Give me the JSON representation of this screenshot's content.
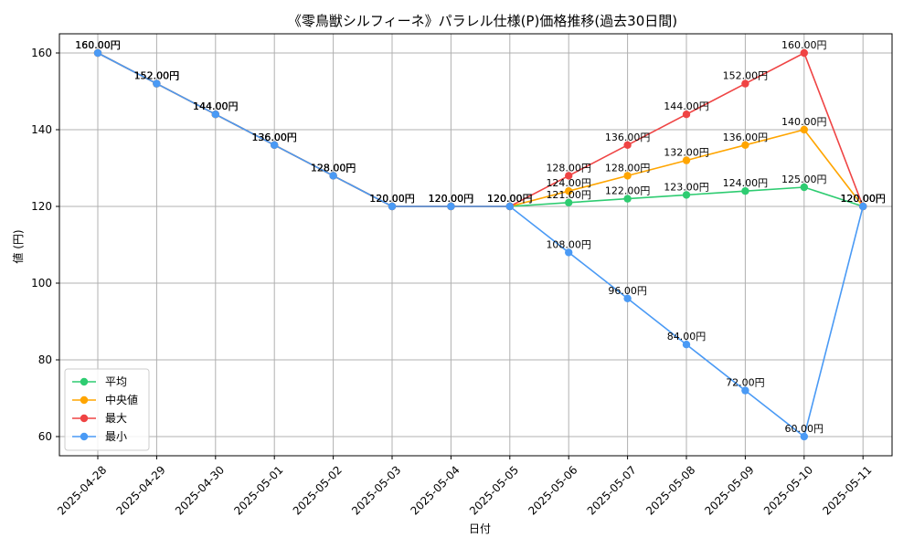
{
  "chart_data": {
    "type": "line",
    "title": "《零鳥獣シルフィーネ》パラレル仕様(P)価格推移(過去30日間)",
    "xlabel": "日付",
    "ylabel": "値 (円)",
    "ylim": [
      55,
      165
    ],
    "yticks": [
      60,
      80,
      100,
      120,
      140,
      160
    ],
    "grid": true,
    "legend_position": "bottom-left",
    "label_suffix": "円",
    "categories": [
      "2025-04-28",
      "2025-04-29",
      "2025-04-30",
      "2025-05-01",
      "2025-05-02",
      "2025-05-03",
      "2025-05-04",
      "2025-05-05",
      "2025-05-06",
      "2025-05-07",
      "2025-05-08",
      "2025-05-09",
      "2025-05-10",
      "2025-05-11"
    ],
    "series": [
      {
        "name": "平均",
        "color": "#2ecc71",
        "values": [
          160,
          152,
          144,
          136,
          128,
          120,
          120,
          120,
          121,
          122,
          123,
          124,
          125,
          120
        ]
      },
      {
        "name": "中央値",
        "color": "#ffa500",
        "values": [
          160,
          152,
          144,
          136,
          128,
          120,
          120,
          120,
          124,
          128,
          132,
          136,
          140,
          120
        ]
      },
      {
        "name": "最大",
        "color": "#ef4444",
        "values": [
          160,
          152,
          144,
          136,
          128,
          120,
          120,
          120,
          128,
          136,
          144,
          152,
          160,
          120
        ]
      },
      {
        "name": "最小",
        "color": "#4a9af5",
        "values": [
          160,
          152,
          144,
          136,
          128,
          120,
          120,
          120,
          108,
          96,
          84,
          72,
          60,
          120
        ]
      }
    ]
  }
}
